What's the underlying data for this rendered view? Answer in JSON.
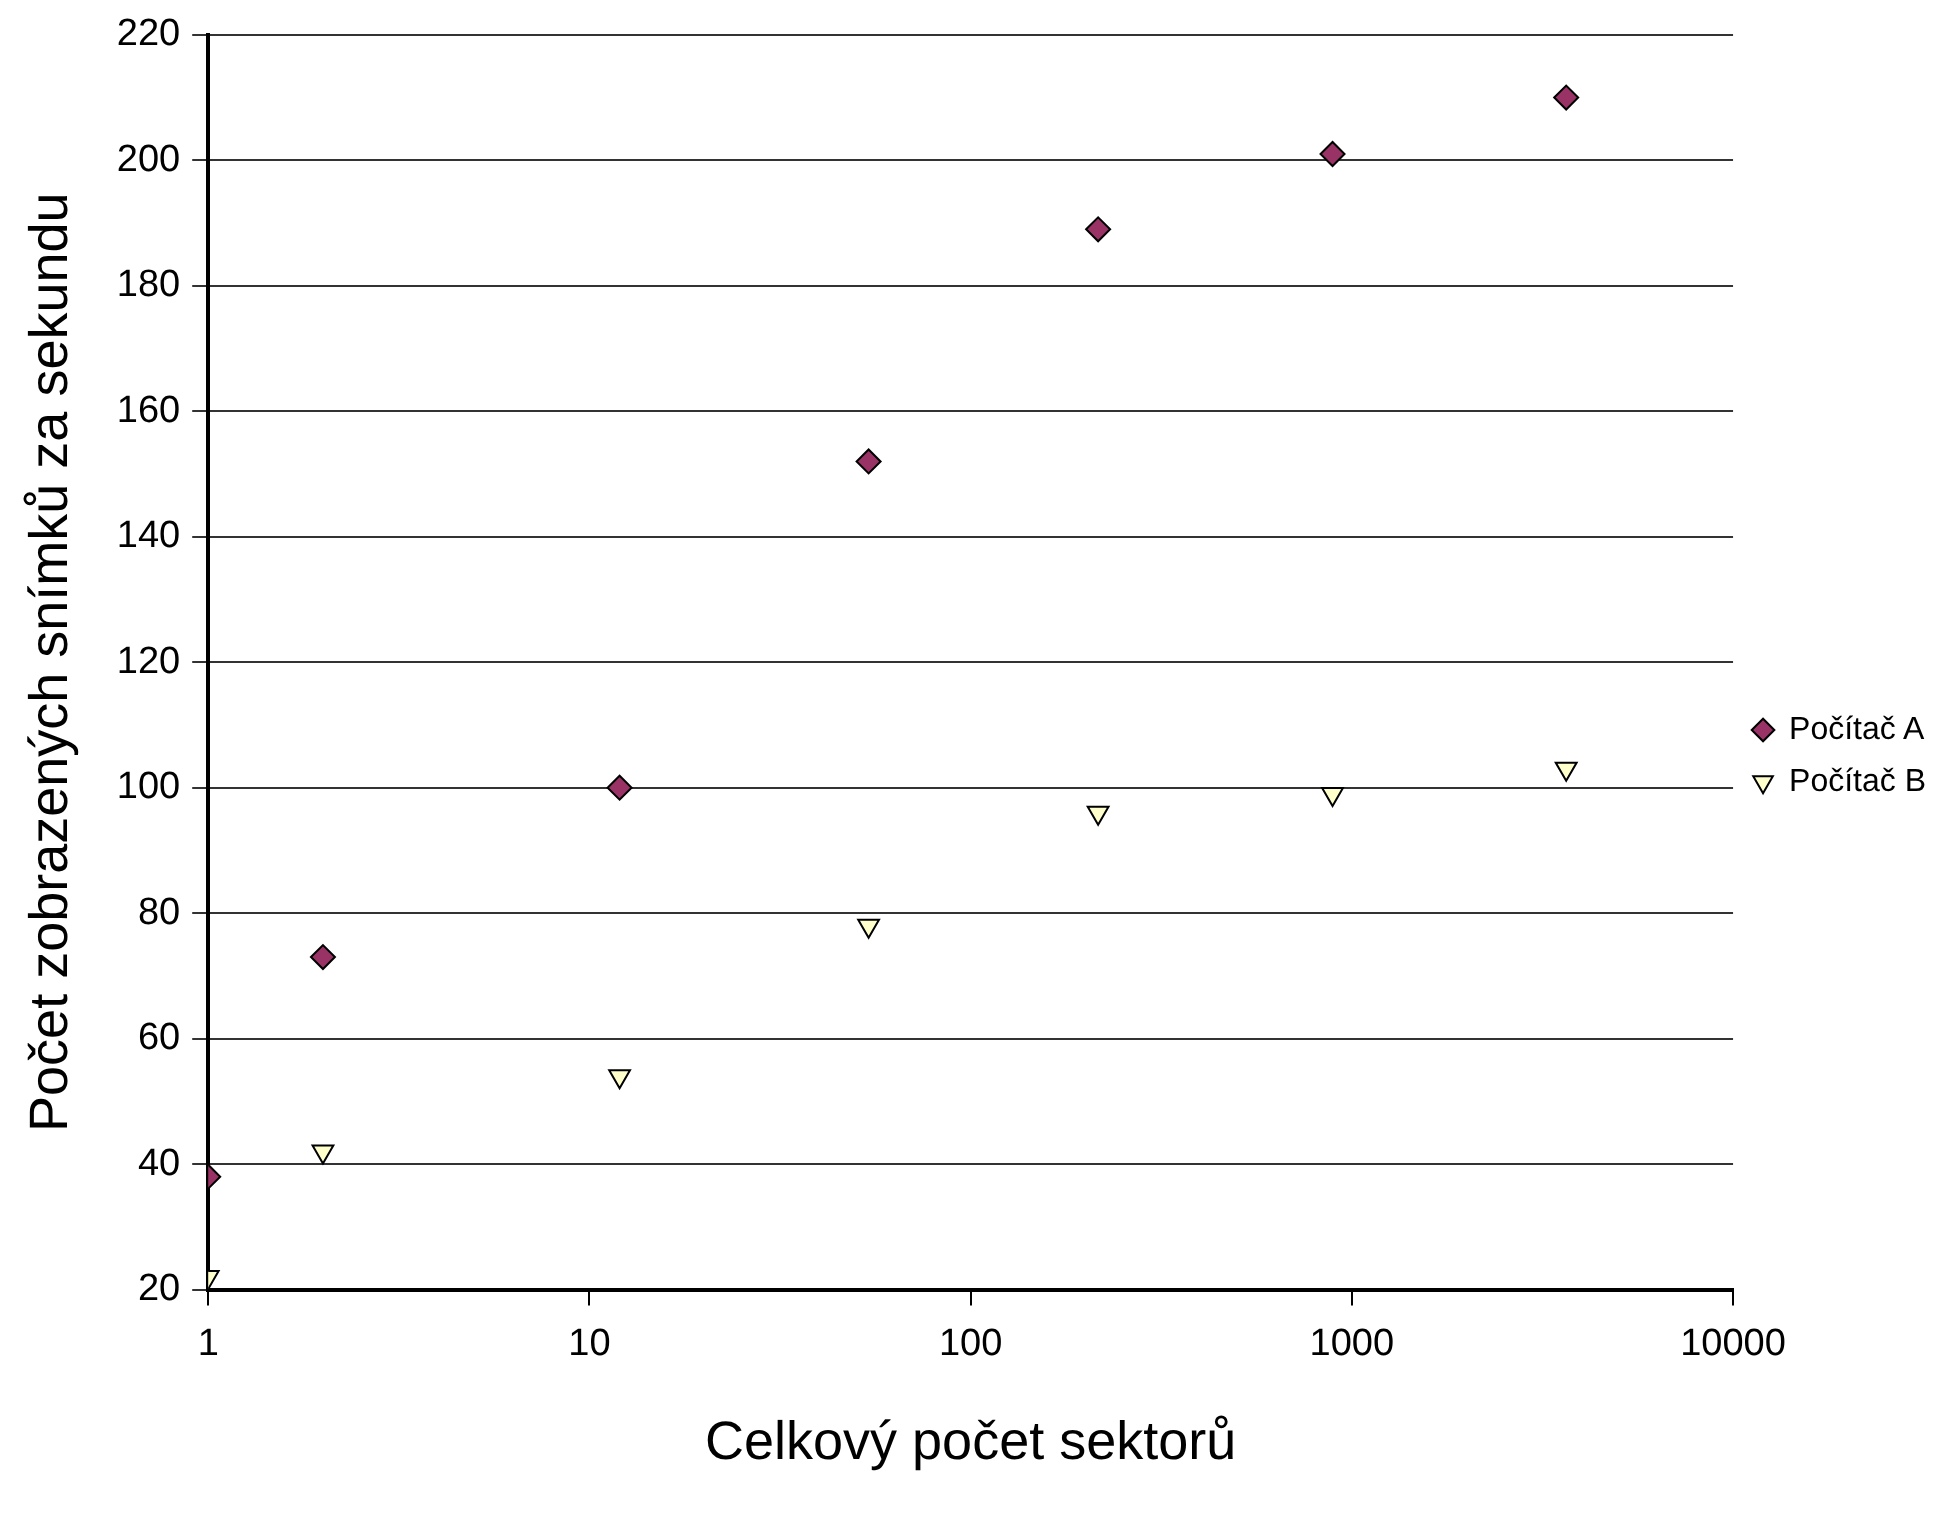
{
  "chart_data": {
    "type": "scatter",
    "xlabel": "Celkový počet sektorů",
    "ylabel": "Počet zobrazených snímků za sekundu",
    "log": "x",
    "xlim": [
      1,
      10000
    ],
    "xticks": [
      1,
      10,
      100,
      1000,
      10000
    ],
    "ylim": [
      20,
      220
    ],
    "yticks": [
      20,
      40,
      60,
      80,
      100,
      120,
      140,
      160,
      180,
      200,
      220
    ],
    "x": [
      1,
      2,
      12,
      54,
      216,
      890,
      3650
    ],
    "grid": "y",
    "legend": "right",
    "series": [
      {
        "name": "Počítač A",
        "color": "#993366",
        "marker": "diamond",
        "values": [
          38,
          73,
          100,
          152,
          189,
          201,
          210
        ]
      },
      {
        "name": "Počítač B",
        "color": "#ffffcc",
        "marker": "triangle",
        "values": [
          22,
          42,
          54,
          78,
          96,
          99,
          103
        ]
      }
    ]
  }
}
